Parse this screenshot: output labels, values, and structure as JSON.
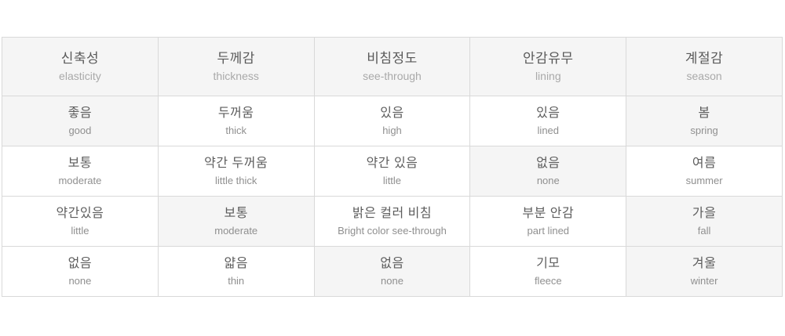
{
  "page": {
    "background": "#ffffff"
  },
  "table": {
    "header_bg": "#f5f5f5",
    "selected_bg": "#f5f5f5",
    "border_color": "#d9d9d9",
    "korean_text_color": "#5d5d5d",
    "english_text_color": "#8f8f8f",
    "columns": [
      {
        "id": "elasticity",
        "header": {
          "ko": "신축성",
          "en": "elasticity"
        },
        "options": [
          {
            "ko": "좋음",
            "en": "good",
            "selected": true
          },
          {
            "ko": "보통",
            "en": "moderate",
            "selected": false
          },
          {
            "ko": "약간있음",
            "en": "little",
            "selected": false
          },
          {
            "ko": "없음",
            "en": "none",
            "selected": false
          }
        ]
      },
      {
        "id": "thickness",
        "header": {
          "ko": "두께감",
          "en": "thickness"
        },
        "options": [
          {
            "ko": "두꺼움",
            "en": "thick",
            "selected": false
          },
          {
            "ko": "약간 두꺼움",
            "en": "little thick",
            "selected": false
          },
          {
            "ko": "보통",
            "en": "moderate",
            "selected": true
          },
          {
            "ko": "얇음",
            "en": "thin",
            "selected": false
          }
        ]
      },
      {
        "id": "see-through",
        "header": {
          "ko": "비침정도",
          "en": "see-through"
        },
        "options": [
          {
            "ko": "있음",
            "en": "high",
            "selected": false
          },
          {
            "ko": "약간 있음",
            "en": "little",
            "selected": false
          },
          {
            "ko": "밝은 컬러 비침",
            "en": "Bright color see-through",
            "selected": false
          },
          {
            "ko": "없음",
            "en": "none",
            "selected": true
          }
        ]
      },
      {
        "id": "lining",
        "header": {
          "ko": "안감유무",
          "en": "lining"
        },
        "options": [
          {
            "ko": "있음",
            "en": "lined",
            "selected": false
          },
          {
            "ko": "없음",
            "en": "none",
            "selected": true
          },
          {
            "ko": "부분 안감",
            "en": "part lined",
            "selected": false
          },
          {
            "ko": "기모",
            "en": "fleece",
            "selected": false
          }
        ]
      },
      {
        "id": "season",
        "header": {
          "ko": "계절감",
          "en": "season"
        },
        "options": [
          {
            "ko": "봄",
            "en": "spring",
            "selected": true
          },
          {
            "ko": "여름",
            "en": "summer",
            "selected": false
          },
          {
            "ko": "가을",
            "en": "fall",
            "selected": true
          },
          {
            "ko": "겨울",
            "en": "winter",
            "selected": true
          }
        ]
      }
    ]
  }
}
